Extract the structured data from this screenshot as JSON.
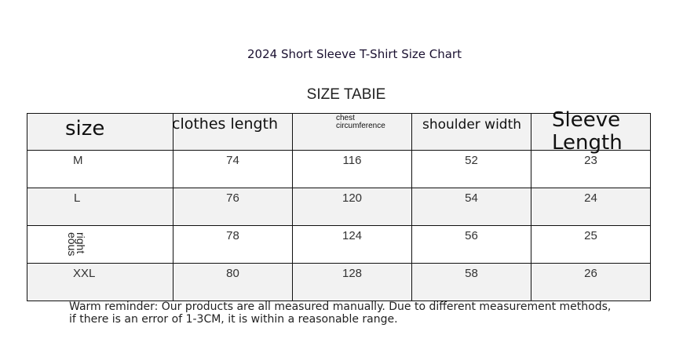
{
  "title": "2024 Short Sleeve T-Shirt Size Chart",
  "subtitle": "SIZE TABIE",
  "table": {
    "headers": [
      "size",
      "clothes length",
      "chest circumference",
      "shoulder width",
      "Sleeve Length"
    ],
    "header_lines": {
      "chest": [
        "chest",
        "circumference"
      ],
      "sleeve": [
        "Sleeve",
        "Length"
      ]
    },
    "rows": [
      [
        "M",
        "74",
        "116",
        "52",
        "23"
      ],
      [
        "L",
        "76",
        "120",
        "54",
        "24"
      ],
      [
        "right eous",
        "78",
        "124",
        "56",
        "25"
      ],
      [
        "XXL",
        "80",
        "128",
        "58",
        "26"
      ]
    ],
    "rotated_size_lines": "right\neous"
  },
  "note": "Warm reminder: Our products are all measured manually. Due to different measurement methods, if there is an error of 1-3CM, it is within a reasonable range."
}
